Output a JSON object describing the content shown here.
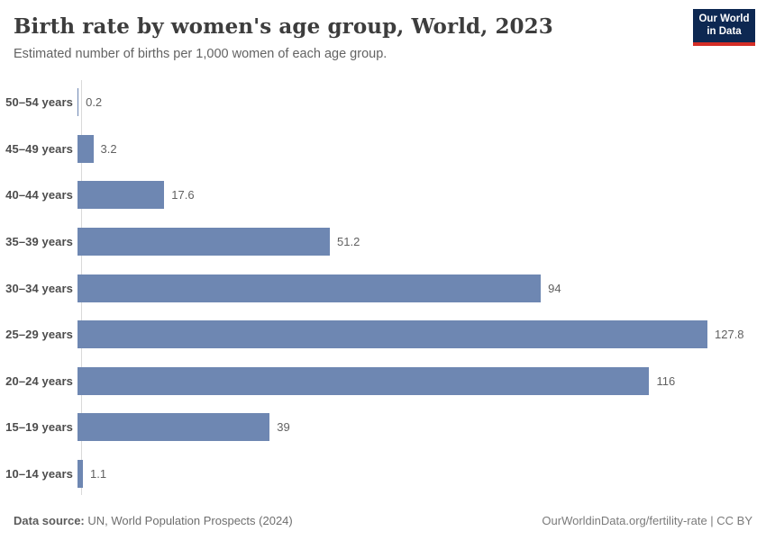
{
  "header": {
    "title": "Birth rate by women's age group, World, 2023",
    "subtitle": "Estimated number of births per 1,000 women of each age group."
  },
  "logo": {
    "line1": "Our World",
    "line2": "in Data",
    "bg_color": "#0d2852",
    "accent_color": "#d42e26"
  },
  "chart_data": {
    "type": "bar",
    "orientation": "horizontal",
    "categories": [
      "50–54 years",
      "45–49 years",
      "40–44 years",
      "35–39 years",
      "30–34 years",
      "25–29 years",
      "20–24 years",
      "15–19 years",
      "10–14 years"
    ],
    "values": [
      0.2,
      3.2,
      17.6,
      51.2,
      94,
      127.8,
      116,
      39,
      1.1
    ],
    "value_labels": [
      "0.2",
      "3.2",
      "17.6",
      "51.2",
      "94",
      "127.8",
      "116",
      "39",
      "1.1"
    ],
    "title": "Birth rate by women's age group, World, 2023",
    "xlabel": "",
    "ylabel": "",
    "xlim": [
      0,
      127.8
    ],
    "grid": false,
    "legend": false,
    "bar_color": "#6e87b2"
  },
  "footer": {
    "data_source_label": "Data source:",
    "data_source_text": " UN, World Population Prospects (2024)",
    "right_text": "OurWorldinData.org/fertility-rate | CC BY"
  }
}
